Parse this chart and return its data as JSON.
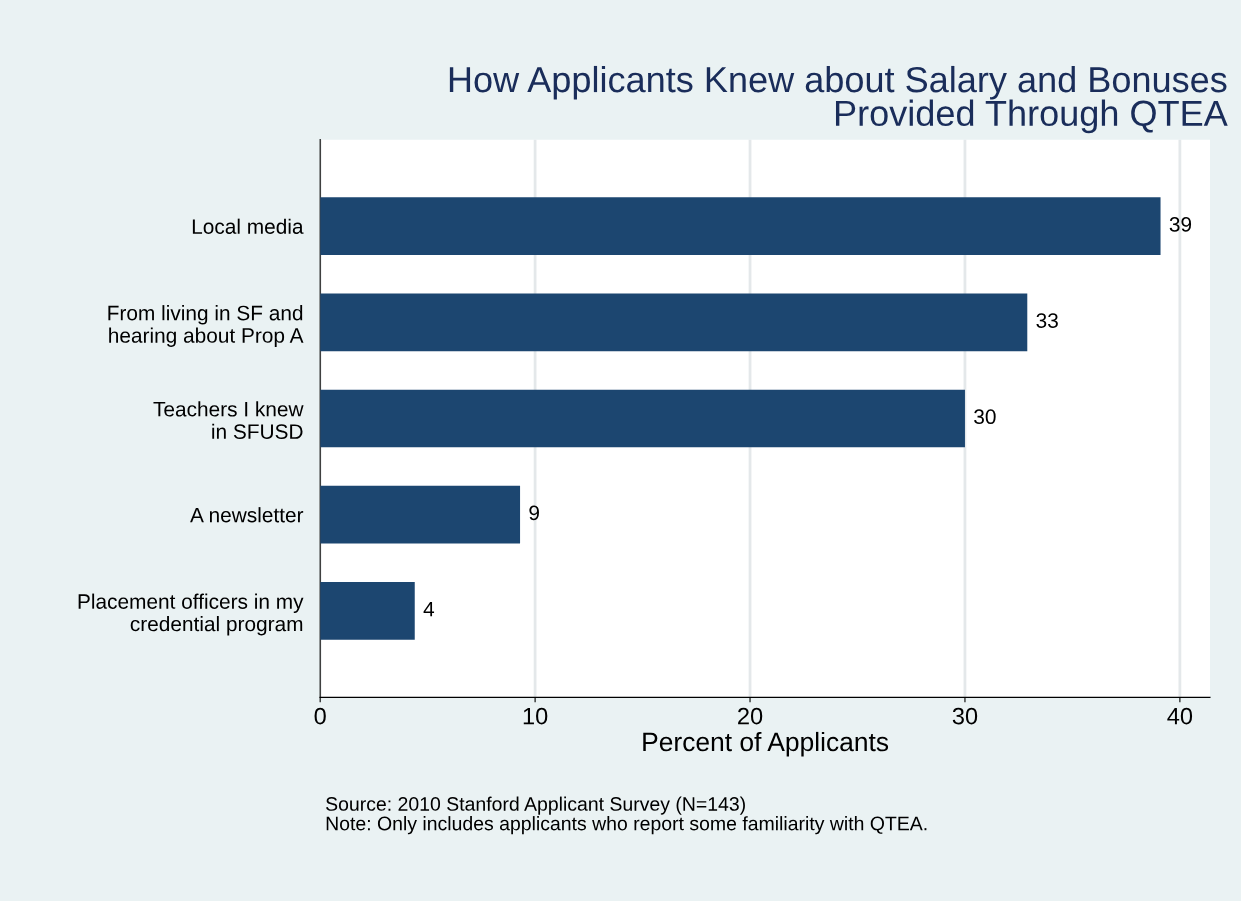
{
  "chart_data": {
    "type": "bar",
    "orientation": "horizontal",
    "title": "How Applicants Knew about Salary and Bonuses\nProvided Through QTEA",
    "xlabel": "Percent of Applicants",
    "categories": [
      "Local media",
      "From living in SF and\nhearing about Prop A",
      "Teachers I knew\nin SFUSD",
      "A newsletter",
      "Placement officers in my\ncredential program"
    ],
    "values": [
      39.1,
      32.9,
      30.0,
      9.3,
      4.4
    ],
    "value_labels": [
      "39",
      "33",
      "30",
      "9",
      "4"
    ],
    "color": "#1c4670",
    "xlim": [
      0,
      41.4
    ],
    "xticks": [
      0,
      10,
      20,
      30,
      40
    ],
    "grid": "x",
    "legend": false,
    "annotations": [
      "Source: 2010 Stanford Applicant Survey (N=143)\nNote: Only includes applicants who report some familiarity with QTEA."
    ]
  }
}
